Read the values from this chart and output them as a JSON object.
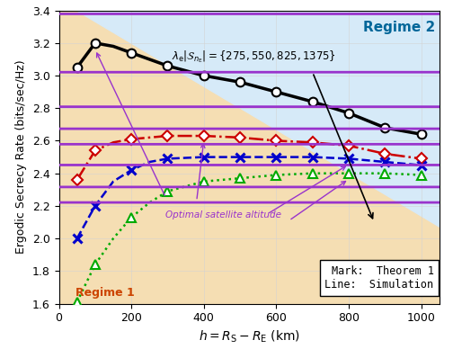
{
  "x": [
    50,
    100,
    150,
    200,
    250,
    300,
    400,
    500,
    600,
    700,
    800,
    900,
    1000
  ],
  "black_y": [
    3.05,
    3.2,
    3.18,
    3.14,
    3.1,
    3.06,
    3.0,
    2.96,
    2.9,
    2.84,
    2.77,
    2.68,
    2.64
  ],
  "red_y": [
    2.36,
    2.54,
    2.59,
    2.61,
    2.62,
    2.63,
    2.63,
    2.62,
    2.6,
    2.59,
    2.57,
    2.52,
    2.49
  ],
  "blue_y": [
    2.0,
    2.2,
    2.35,
    2.42,
    2.47,
    2.49,
    2.5,
    2.5,
    2.5,
    2.5,
    2.49,
    2.47,
    2.45
  ],
  "green_y": [
    1.61,
    1.84,
    2.0,
    2.13,
    2.22,
    2.29,
    2.35,
    2.37,
    2.39,
    2.4,
    2.4,
    2.4,
    2.39
  ],
  "x_marks": [
    50,
    100,
    200,
    300,
    400,
    500,
    600,
    700,
    800,
    900,
    1000
  ],
  "black_marks_y": [
    3.05,
    3.2,
    3.14,
    3.06,
    3.0,
    2.96,
    2.9,
    2.84,
    2.77,
    2.68,
    2.64
  ],
  "red_marks_y": [
    2.36,
    2.54,
    2.61,
    2.63,
    2.63,
    2.62,
    2.6,
    2.59,
    2.57,
    2.52,
    2.49
  ],
  "blue_marks_y": [
    2.0,
    2.2,
    2.42,
    2.49,
    2.5,
    2.5,
    2.5,
    2.5,
    2.49,
    2.47,
    2.45
  ],
  "green_marks_y": [
    1.61,
    1.84,
    2.13,
    2.29,
    2.35,
    2.37,
    2.39,
    2.4,
    2.4,
    2.4,
    2.39
  ],
  "black_color": "#000000",
  "red_color": "#cc0000",
  "blue_color": "#0000cc",
  "green_color": "#00aa00",
  "bg_tan": "#f5deb3",
  "bg_blue": "#d6eaf8",
  "regime1_label": "Regime 1",
  "regime2_label": "Regime 2",
  "regime1_color": "#cc4400",
  "regime2_color": "#006699",
  "xlabel": "$h = R_{\\mathrm{S}} - R_{\\mathrm{E}}$ (km)",
  "ylabel": "Ergodic Secrecy Rate (bits/sec/Hz)",
  "ylim": [
    1.6,
    3.4
  ],
  "xlim": [
    0,
    1050
  ],
  "legend_text1": "Mark:  Theorem 1",
  "legend_text2": "Line:  Simulation"
}
